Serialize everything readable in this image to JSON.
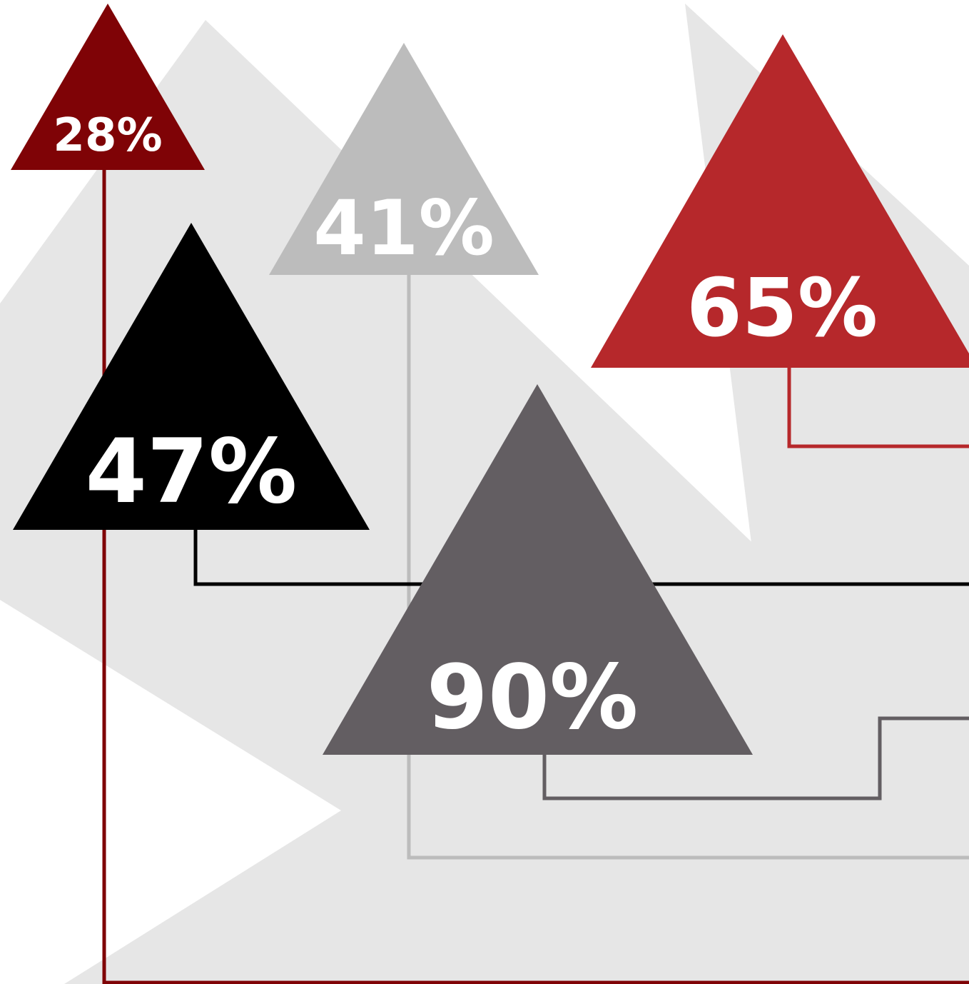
{
  "colors": {
    "background": "#ffffff",
    "bg_shape": "#e6e6e6",
    "dark_red": "#7f0306",
    "light_gray": "#bcbcbc",
    "red": "#b6282b",
    "black": "#000000",
    "dark_gray": "#635e62",
    "text": "#ffffff"
  },
  "markers": [
    {
      "id": "28",
      "label": "28%",
      "color_key": "dark_red"
    },
    {
      "id": "41",
      "label": "41%",
      "color_key": "light_gray"
    },
    {
      "id": "65",
      "label": "65%",
      "color_key": "red"
    },
    {
      "id": "47",
      "label": "47%",
      "color_key": "black"
    },
    {
      "id": "90",
      "label": "90%",
      "color_key": "dark_gray"
    }
  ]
}
